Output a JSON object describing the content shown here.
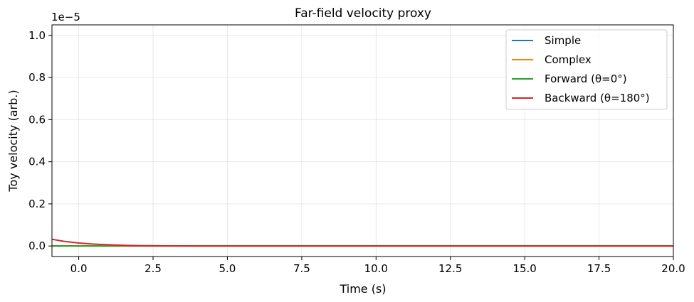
{
  "chart_data": {
    "type": "line",
    "title": "Far-field velocity proxy",
    "xlabel": "Time (s)",
    "ylabel": "Toy velocity (arb.)",
    "y_offset_label": "1e−5",
    "xlim": [
      -0.9,
      20.0
    ],
    "ylim": [
      -0.05,
      1.05
    ],
    "x_ticks": [
      0.0,
      2.5,
      5.0,
      7.5,
      10.0,
      12.5,
      15.0,
      17.5,
      20.0
    ],
    "x_tick_labels": [
      "0.0",
      "2.5",
      "5.0",
      "7.5",
      "10.0",
      "12.5",
      "15.0",
      "17.5",
      "20.0"
    ],
    "y_ticks": [
      0.0,
      0.2,
      0.4,
      0.6,
      0.8,
      1.0
    ],
    "y_tick_labels": [
      "0.0",
      "0.2",
      "0.4",
      "0.6",
      "0.8",
      "1.0"
    ],
    "grid": true,
    "legend_position": "top-right",
    "series": [
      {
        "name": "Simple",
        "color": "#1f77b4",
        "x": [
          -0.9,
          20.0
        ],
        "y": [
          0.0,
          0.0
        ]
      },
      {
        "name": "Complex",
        "color": "#ff7f0e",
        "x": [
          -0.9,
          20.0
        ],
        "y": [
          0.0,
          0.0
        ]
      },
      {
        "name": "Forward (θ=0°)",
        "color": "#2ca02c",
        "x": [
          -0.9,
          0.0,
          1.0,
          2.0,
          3.0,
          5.0,
          20.0
        ],
        "y": [
          0.0,
          0.0,
          0.0,
          0.0,
          0.0,
          0.0,
          0.0
        ]
      },
      {
        "name": "Backward (θ=180°)",
        "color": "#d62728",
        "x": [
          -0.9,
          -0.5,
          0.0,
          0.5,
          1.0,
          1.5,
          2.0,
          2.5,
          3.0,
          4.0,
          5.0,
          7.5,
          10.0,
          15.0,
          20.0
        ],
        "y": [
          0.032,
          0.022,
          0.014,
          0.009,
          0.0055,
          0.0033,
          0.002,
          0.0012,
          0.0007,
          0.0003,
          0.0001,
          0.0,
          0.0,
          0.0,
          0.0
        ]
      }
    ]
  }
}
